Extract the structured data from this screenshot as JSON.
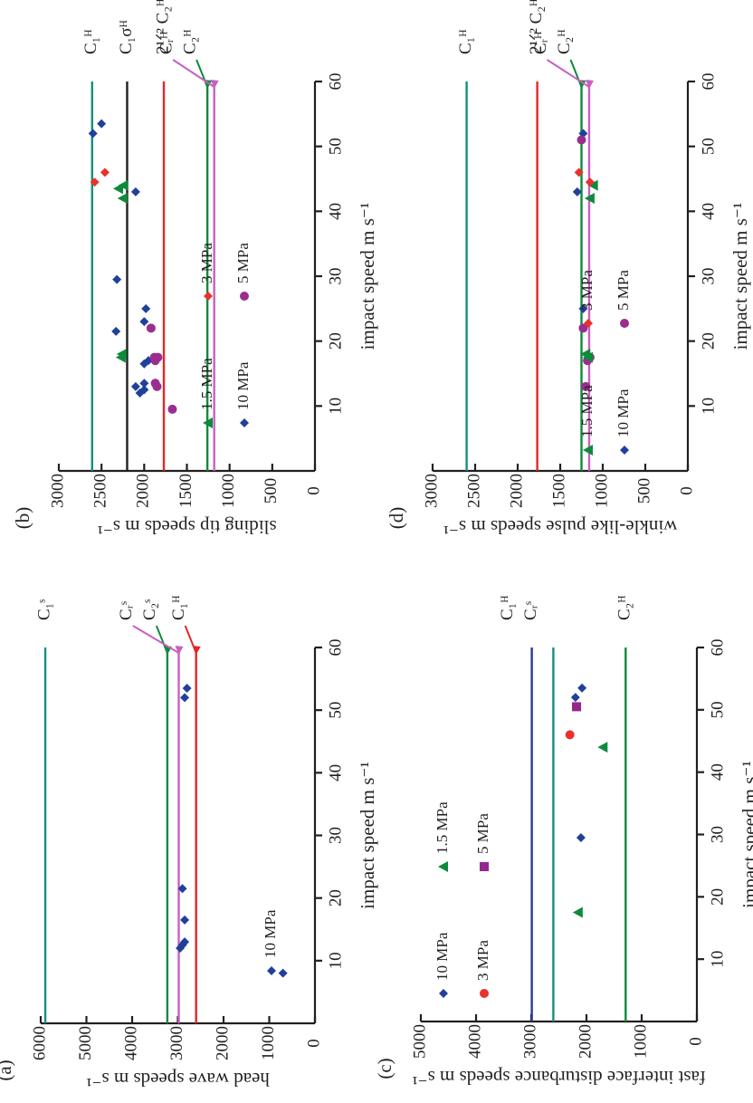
{
  "colors": {
    "teal": "#138f7f",
    "green": "#0e8a3c",
    "red": "#e4262b",
    "pink": "#c860c0",
    "black": "#231f20",
    "blue": "#21409a",
    "navy": "#2b3990",
    "purple": "#9b2d8f",
    "orange_red": "#e8322a",
    "magenta": "#93278f",
    "dark_green": "#0a7a3a"
  },
  "chart_data": [
    {
      "id": "a",
      "type": "scatter",
      "panel_label": "(a)",
      "xlabel": "impact speed m s⁻¹",
      "ylabel": "head wave speeds m s⁻¹",
      "xlim": [
        0,
        60
      ],
      "ylim": [
        0,
        6000
      ],
      "xticks": [
        "10",
        "20",
        "30",
        "40",
        "50",
        "60"
      ],
      "yticks": [
        "0",
        "1000",
        "2000",
        "3000",
        "4000",
        "5000",
        "6000"
      ],
      "hlines": [
        {
          "label": "C₁ˢ",
          "y": 5900,
          "color": "#138f7f"
        },
        {
          "label": "C₂ˢ",
          "y": 3230,
          "color": "#0e8a3c",
          "arrow": true
        },
        {
          "label": "Cᵣˢ",
          "y": 2980,
          "color": "#c860c0",
          "arrow": true
        },
        {
          "label": "C₁ᴴ",
          "y": 2600,
          "color": "#e4262b",
          "arrow": true
        }
      ],
      "series": [
        {
          "name": "10 MPa",
          "marker": "diamond",
          "color": "#21409a",
          "points": [
            [
              8,
              700
            ],
            [
              12,
              2950
            ],
            [
              12.5,
              2900
            ],
            [
              13,
              2850
            ],
            [
              16.5,
              2850
            ],
            [
              21.5,
              2900
            ],
            [
              52,
              2850
            ],
            [
              53.5,
              2800
            ]
          ]
        }
      ],
      "legend": [
        {
          "label": "10 MPa",
          "marker": "diamond",
          "color": "#21409a"
        }
      ]
    },
    {
      "id": "b",
      "type": "scatter",
      "panel_label": "(b)",
      "xlabel": "impact speed m s⁻¹",
      "ylabel": "sliding tip speeds m s⁻¹",
      "xlim": [
        0,
        60
      ],
      "ylim": [
        0,
        3000
      ],
      "xticks": [
        "10",
        "20",
        "30",
        "40",
        "50",
        "60"
      ],
      "yticks": [
        "0",
        "500",
        "1000",
        "1500",
        "2000",
        "2500",
        "3000"
      ],
      "hlines": [
        {
          "label": "C₁ᴴ",
          "y": 2610,
          "color": "#138f7f"
        },
        {
          "label": "C₁σᴴ",
          "y": 2200,
          "color": "#231f20"
        },
        {
          "label": "2¹ᐟ² C₂ᴴ",
          "y": 1770,
          "color": "#e4262b"
        },
        {
          "label": "C₂ᴴ",
          "y": 1260,
          "color": "#0e8a3c",
          "arrow": true
        },
        {
          "label": "Cᵣᴴ",
          "y": 1180,
          "color": "#c860c0",
          "arrow": true
        }
      ],
      "series": [
        {
          "name": "10 MPa",
          "marker": "diamond",
          "color": "#21409a",
          "points": [
            [
              12,
              2050
            ],
            [
              12.5,
              2000
            ],
            [
              13,
              2100
            ],
            [
              13.5,
              2000
            ],
            [
              16.5,
              2000
            ],
            [
              17,
              1950
            ],
            [
              21.5,
              2330
            ],
            [
              23,
              2000
            ],
            [
              25,
              1980
            ],
            [
              29.5,
              2320
            ],
            [
              43,
              2100
            ],
            [
              52,
              2600
            ],
            [
              53.5,
              2500
            ]
          ]
        },
        {
          "name": "5 MPa",
          "marker": "circle",
          "color": "#9b2d8f",
          "points": [
            [
              9.5,
              1670
            ],
            [
              13,
              1850
            ],
            [
              13.5,
              1870
            ],
            [
              17,
              1870
            ],
            [
              17.5,
              1880
            ],
            [
              17.5,
              1840
            ],
            [
              22,
              1920
            ]
          ]
        },
        {
          "name": "1.5 MPa",
          "marker": "triangle",
          "color": "#0e8a3c",
          "points": [
            [
              17.5,
              2270
            ],
            [
              18,
              2260
            ],
            [
              42,
              2250
            ],
            [
              43.5,
              2300
            ],
            [
              44,
              2240
            ]
          ]
        },
        {
          "name": "3 MPa",
          "marker": "diamond",
          "color": "#e8322a",
          "points": [
            [
              44.5,
              2580
            ],
            [
              46,
              2460
            ]
          ]
        }
      ],
      "legend": [
        {
          "label": "10 MPa",
          "marker": "diamond",
          "color": "#21409a"
        },
        {
          "label": "5 MPa",
          "marker": "circle",
          "color": "#9b2d8f"
        },
        {
          "label": "1.5 MPa",
          "marker": "triangle",
          "color": "#0e8a3c"
        },
        {
          "label": "3 MPa",
          "marker": "diamond",
          "color": "#e8322a"
        }
      ]
    },
    {
      "id": "c",
      "type": "scatter",
      "panel_label": "(c)",
      "xlabel": "impact speed m s⁻¹",
      "ylabel": "fast interface disturbance speeds m s⁻¹",
      "xlim": [
        0,
        60
      ],
      "ylim": [
        0,
        5000
      ],
      "xticks": [
        "10",
        "20",
        "30",
        "40",
        "50",
        "60"
      ],
      "yticks": [
        "0",
        "1000",
        "2000",
        "3000",
        "4000",
        "5000"
      ],
      "hlines": [
        {
          "label": "Cᵣˢ",
          "y": 2990,
          "color": "#2b3990"
        },
        {
          "label": "C₁ᴴ",
          "y": 2600,
          "color": "#138f7f"
        },
        {
          "label": "C₂ᴴ",
          "y": 1290,
          "color": "#0e8a3c"
        }
      ],
      "series": [
        {
          "name": "10 MPa",
          "marker": "diamond",
          "color": "#21409a",
          "points": [
            [
              29.5,
              2100
            ],
            [
              52,
              2200
            ],
            [
              53.5,
              2080
            ]
          ]
        },
        {
          "name": "1.5 MPa",
          "marker": "triangle",
          "color": "#0e8a3c",
          "points": [
            [
              17.5,
              2150
            ],
            [
              44,
              1700
            ]
          ]
        },
        {
          "name": "3 MPa",
          "marker": "circle",
          "color": "#e8322a",
          "points": [
            [
              46,
              2300
            ]
          ]
        },
        {
          "name": "5 MPa",
          "marker": "square",
          "color": "#93278f",
          "points": [
            [
              50.5,
              2180
            ]
          ]
        }
      ],
      "legend": [
        {
          "label": "10 MPa",
          "marker": "diamond",
          "color": "#21409a"
        },
        {
          "label": "1.5 MPa",
          "marker": "triangle",
          "color": "#0e8a3c"
        },
        {
          "label": "3 MPa",
          "marker": "circle",
          "color": "#e8322a"
        },
        {
          "label": "5 MPa",
          "marker": "square",
          "color": "#93278f"
        }
      ]
    },
    {
      "id": "d",
      "type": "scatter",
      "panel_label": "(d)",
      "xlabel": "impact speed m s⁻¹",
      "ylabel": "winkle-like pulse speeds m s⁻¹",
      "xlim": [
        0,
        60
      ],
      "ylim": [
        0,
        3000
      ],
      "xticks": [
        "10",
        "20",
        "30",
        "40",
        "50",
        "60"
      ],
      "yticks": [
        "0",
        "500",
        "1000",
        "1500",
        "2000",
        "2500",
        "3000"
      ],
      "hlines": [
        {
          "label": "C₁ᴴ",
          "y": 2600,
          "color": "#138f7f"
        },
        {
          "label": "2¹ᐟ² C₂ᴴ",
          "y": 1770,
          "color": "#e4262b"
        },
        {
          "label": "C₂ᴴ",
          "y": 1250,
          "color": "#0e8a3c",
          "arrow": true
        },
        {
          "label": "Cᵣᴴ",
          "y": 1160,
          "color": "#c860c0",
          "arrow": true
        }
      ],
      "series": [
        {
          "name": "10 MPa",
          "marker": "diamond",
          "color": "#21409a",
          "points": [
            [
              25,
              1230
            ],
            [
              43,
              1300
            ],
            [
              52,
              1230
            ]
          ]
        },
        {
          "name": "5 MPa",
          "marker": "circle",
          "color": "#9b2d8f",
          "points": [
            [
              13,
              1200
            ],
            [
              17,
              1180
            ],
            [
              17.5,
              1150
            ],
            [
              22,
              1230
            ],
            [
              51,
              1250
            ]
          ]
        },
        {
          "name": "1.5 MPa",
          "marker": "triangle",
          "color": "#0e8a3c",
          "points": [
            [
              17.5,
              1170
            ],
            [
              18,
              1200
            ],
            [
              42,
              1150
            ],
            [
              44,
              1110
            ]
          ]
        },
        {
          "name": "3 MPa",
          "marker": "diamond",
          "color": "#e8322a",
          "points": [
            [
              44.5,
              1150
            ],
            [
              46,
              1280
            ]
          ]
        }
      ],
      "legend": [
        {
          "label": "10 MPa",
          "marker": "diamond",
          "color": "#21409a"
        },
        {
          "label": "5 MPa",
          "marker": "circle",
          "color": "#9b2d8f"
        },
        {
          "label": "1.5 MPa",
          "marker": "triangle",
          "color": "#0e8a3c"
        },
        {
          "label": "3 MPa",
          "marker": "diamond",
          "color": "#e8322a"
        }
      ]
    }
  ]
}
